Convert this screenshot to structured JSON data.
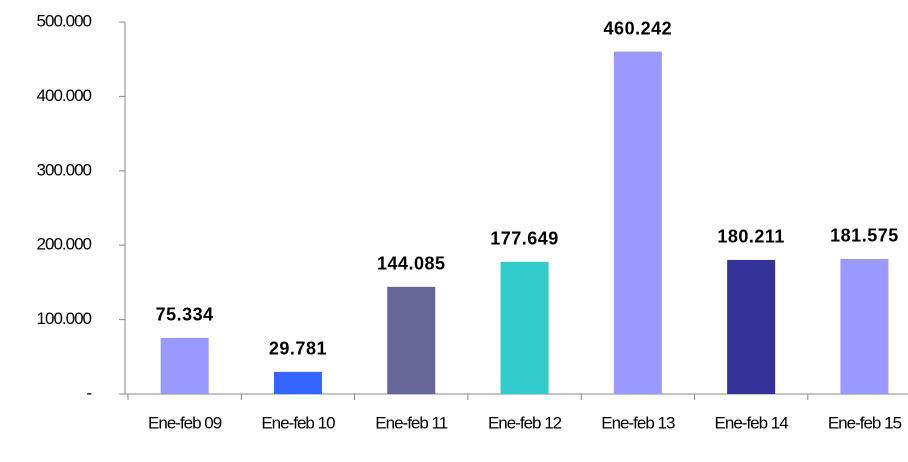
{
  "chart_data": {
    "type": "bar",
    "categories": [
      "Ene-feb 09",
      "Ene-feb 10",
      "Ene-feb 11",
      "Ene-feb 12",
      "Ene-feb 13",
      "Ene-feb 14",
      "Ene-feb 15"
    ],
    "values": [
      75334,
      29781,
      144085,
      177649,
      460242,
      180211,
      181575
    ],
    "value_labels": [
      "75.334",
      "29.781",
      "144.085",
      "177.649",
      "460.242",
      "180.211",
      "181.575"
    ],
    "colors": [
      "#9999ff",
      "#3366ff",
      "#666699",
      "#33cccc",
      "#9999ff",
      "#333399",
      "#9999ff"
    ],
    "ylim": [
      0,
      500000
    ],
    "yticks": [
      {
        "value": 0,
        "label": "-"
      },
      {
        "value": 100000,
        "label": "100.000"
      },
      {
        "value": 200000,
        "label": "200.000"
      },
      {
        "value": 300000,
        "label": "300.000"
      },
      {
        "value": 400000,
        "label": "400.000"
      },
      {
        "value": 500000,
        "label": "500.000"
      }
    ],
    "grid": false
  }
}
